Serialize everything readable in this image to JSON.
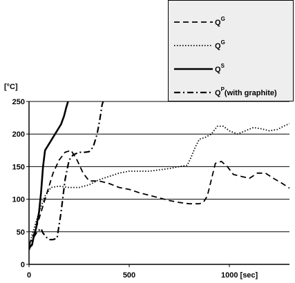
{
  "chart_data": {
    "type": "line",
    "title": "",
    "xlabel": "",
    "ylabel": "",
    "x_unit": "[sec]",
    "y_unit": "[°C]",
    "xlim": [
      0,
      1300
    ],
    "ylim": [
      0,
      250
    ],
    "x_ticks": [
      {
        "value": 0,
        "label": "0"
      },
      {
        "value": 500,
        "label": "500"
      },
      {
        "value": 1000,
        "label": "1000 [sec]"
      }
    ],
    "y_ticks": [
      {
        "value": 0,
        "label": "0"
      },
      {
        "value": 50,
        "label": "50"
      },
      {
        "value": 100,
        "label": "100"
      },
      {
        "value": 150,
        "label": "150"
      },
      {
        "value": 200,
        "label": "200"
      },
      {
        "value": 250,
        "label": "250"
      }
    ],
    "grid": "horizontal",
    "legend_position": "top-right",
    "series": [
      {
        "name": "Q",
        "sup": "G",
        "dash": "dashed",
        "color": "#000000",
        "points": [
          [
            0,
            30
          ],
          [
            30,
            50
          ],
          [
            60,
            80
          ],
          [
            90,
            110
          ],
          [
            120,
            140
          ],
          [
            150,
            160
          ],
          [
            180,
            172
          ],
          [
            210,
            175
          ],
          [
            240,
            160
          ],
          [
            270,
            140
          ],
          [
            300,
            128
          ],
          [
            350,
            128
          ],
          [
            400,
            124
          ],
          [
            450,
            118
          ],
          [
            500,
            115
          ],
          [
            550,
            110
          ],
          [
            600,
            106
          ],
          [
            650,
            102
          ],
          [
            700,
            98
          ],
          [
            750,
            95
          ],
          [
            800,
            93
          ],
          [
            850,
            93
          ],
          [
            870,
            95
          ],
          [
            890,
            105
          ],
          [
            910,
            130
          ],
          [
            930,
            155
          ],
          [
            960,
            158
          ],
          [
            990,
            150
          ],
          [
            1020,
            138
          ],
          [
            1060,
            135
          ],
          [
            1100,
            132
          ],
          [
            1140,
            140
          ],
          [
            1180,
            140
          ],
          [
            1220,
            132
          ],
          [
            1260,
            125
          ],
          [
            1300,
            117
          ]
        ]
      },
      {
        "name": "Q",
        "sup": "G",
        "dash": "dotted",
        "color": "#000000",
        "points": [
          [
            0,
            28
          ],
          [
            20,
            50
          ],
          [
            50,
            80
          ],
          [
            80,
            105
          ],
          [
            110,
            118
          ],
          [
            150,
            120
          ],
          [
            200,
            118
          ],
          [
            250,
            118
          ],
          [
            300,
            122
          ],
          [
            350,
            130
          ],
          [
            400,
            135
          ],
          [
            450,
            140
          ],
          [
            500,
            143
          ],
          [
            550,
            143
          ],
          [
            600,
            143
          ],
          [
            650,
            145
          ],
          [
            700,
            147
          ],
          [
            750,
            150
          ],
          [
            790,
            152
          ],
          [
            810,
            165
          ],
          [
            830,
            180
          ],
          [
            850,
            192
          ],
          [
            880,
            195
          ],
          [
            910,
            200
          ],
          [
            940,
            212
          ],
          [
            970,
            212
          ],
          [
            1000,
            205
          ],
          [
            1040,
            200
          ],
          [
            1080,
            205
          ],
          [
            1120,
            210
          ],
          [
            1160,
            208
          ],
          [
            1200,
            205
          ],
          [
            1240,
            207
          ],
          [
            1270,
            212
          ],
          [
            1300,
            216
          ]
        ]
      },
      {
        "name": "Q",
        "sup": "S",
        "dash": "solid",
        "color": "#000000",
        "points": [
          [
            0,
            25
          ],
          [
            15,
            30
          ],
          [
            25,
            45
          ],
          [
            35,
            55
          ],
          [
            50,
            80
          ],
          [
            60,
            110
          ],
          [
            70,
            150
          ],
          [
            80,
            175
          ],
          [
            100,
            185
          ],
          [
            120,
            195
          ],
          [
            140,
            205
          ],
          [
            160,
            215
          ],
          [
            175,
            228
          ],
          [
            185,
            240
          ],
          [
            195,
            250
          ]
        ]
      },
      {
        "name": "Q",
        "sup": "P",
        "suffix": "(with graphite)",
        "dash": "dashdot",
        "color": "#000000",
        "points": [
          [
            0,
            22
          ],
          [
            20,
            40
          ],
          [
            40,
            50
          ],
          [
            60,
            55
          ],
          [
            70,
            48
          ],
          [
            85,
            42
          ],
          [
            100,
            38
          ],
          [
            120,
            38
          ],
          [
            140,
            40
          ],
          [
            160,
            80
          ],
          [
            180,
            130
          ],
          [
            200,
            160
          ],
          [
            220,
            168
          ],
          [
            250,
            172
          ],
          [
            280,
            172
          ],
          [
            300,
            173
          ],
          [
            320,
            180
          ],
          [
            340,
            200
          ],
          [
            355,
            225
          ],
          [
            365,
            245
          ],
          [
            370,
            250
          ]
        ]
      }
    ]
  }
}
